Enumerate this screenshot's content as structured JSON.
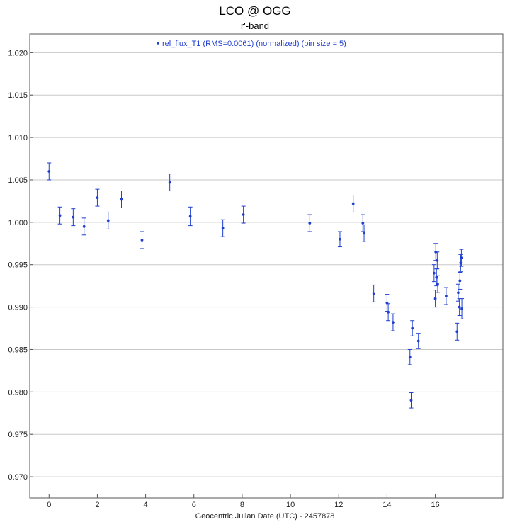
{
  "chart_data": {
    "type": "scatter",
    "title": "LCO @ OGG",
    "subtitle": "r'-band",
    "xlabel": "Geocentric Julian Date (UTC) - 2457878",
    "ylabel": "",
    "xlim": [
      -0.8,
      18.8
    ],
    "ylim": [
      0.9675,
      1.0222
    ],
    "grid": true,
    "legend_position": "top-center",
    "xticks": [
      0,
      2,
      4,
      6,
      8,
      10,
      12,
      14,
      16
    ],
    "yticks": [
      0.97,
      0.975,
      0.98,
      0.985,
      0.99,
      0.995,
      1.0,
      1.005,
      1.01,
      1.015,
      1.02
    ],
    "ytick_labels": [
      "0.970",
      "0.975",
      "0.980",
      "0.985",
      "0.990",
      "0.995",
      "1.000",
      "1.005",
      "1.010",
      "1.015",
      "1.020"
    ],
    "colors": {
      "series": "#1f3fcf",
      "grid": "#c8c8c8"
    },
    "series": [
      {
        "name": "rel_flux_T1 (RMS=0.0061) (normalized) (bin size = 5)",
        "x": [
          0.0,
          0.45,
          1.0,
          1.45,
          2.0,
          2.45,
          3.0,
          3.85,
          5.0,
          5.85,
          7.2,
          8.05,
          10.8,
          12.05,
          12.6,
          13.0,
          13.05,
          13.45,
          14.0,
          14.05,
          14.25,
          14.95,
          15.0,
          15.05,
          15.3,
          15.95,
          16.0,
          16.02,
          16.05,
          16.08,
          16.1,
          16.45,
          16.9,
          16.95,
          17.0,
          17.02,
          17.05,
          17.08,
          17.1
        ],
        "y": [
          1.006,
          1.0008,
          1.0006,
          0.9995,
          1.0029,
          1.0002,
          1.0027,
          0.9979,
          1.0047,
          1.0007,
          0.9993,
          1.0009,
          0.9999,
          0.998,
          1.0022,
          0.9999,
          0.9987,
          0.9916,
          0.9905,
          0.9894,
          0.9882,
          0.9841,
          0.979,
          0.9875,
          0.986,
          0.994,
          0.991,
          0.9965,
          0.9935,
          0.9955,
          0.9927,
          0.9913,
          0.9871,
          0.9917,
          0.99,
          0.9931,
          0.9952,
          0.9958,
          0.9898
        ],
        "err": [
          0.001,
          0.001,
          0.001,
          0.001,
          0.001,
          0.001,
          0.001,
          0.001,
          0.001,
          0.0011,
          0.001,
          0.001,
          0.001,
          0.0009,
          0.001,
          0.001,
          0.001,
          0.001,
          0.001,
          0.001,
          0.001,
          0.0009,
          0.0009,
          0.0009,
          0.0009,
          0.001,
          0.001,
          0.001,
          0.001,
          0.001,
          0.001,
          0.001,
          0.001,
          0.001,
          0.001,
          0.001,
          0.001,
          0.001,
          0.0012
        ]
      }
    ]
  }
}
